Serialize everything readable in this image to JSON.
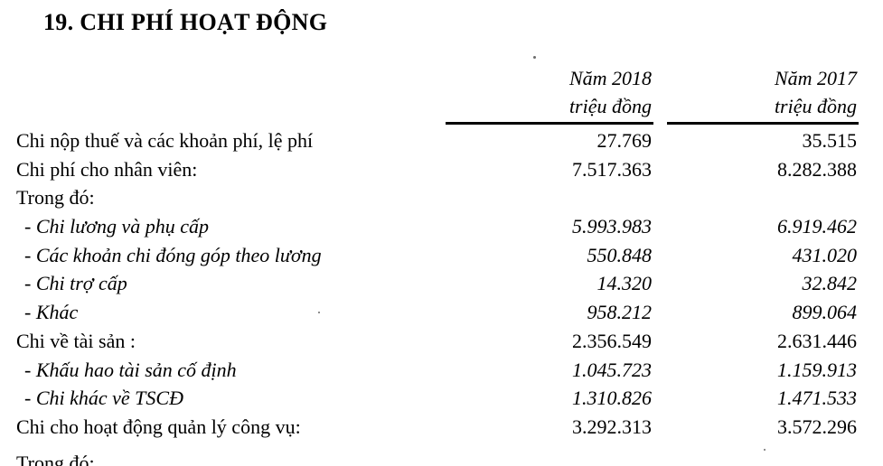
{
  "doc": {
    "title": "19. CHI PHÍ HOẠT ĐỘNG",
    "table": {
      "columns": [
        {
          "year": "Năm 2018",
          "unit": "triệu đồng"
        },
        {
          "year": "Năm 2017",
          "unit": "triệu đồng"
        }
      ],
      "rows": [
        {
          "label": "Chi nộp thuế và các khoản phí, lệ phí",
          "v2018": "27.769",
          "v2017": "35.515",
          "style": "regular"
        },
        {
          "label": "Chi phí cho nhân viên:",
          "v2018": "7.517.363",
          "v2017": "8.282.388",
          "style": "regular"
        },
        {
          "label": "Trong đó:",
          "v2018": "",
          "v2017": "",
          "style": "regular"
        },
        {
          "label": "- Chi lương và phụ cấp",
          "v2018": "5.993.983",
          "v2017": "6.919.462",
          "style": "italic"
        },
        {
          "label": "- Các khoản chi đóng góp theo lương",
          "v2018": "550.848",
          "v2017": "431.020",
          "style": "italic"
        },
        {
          "label": "- Chi trợ cấp",
          "v2018": "14.320",
          "v2017": "32.842",
          "style": "italic"
        },
        {
          "label": "- Khác",
          "v2018": "958.212",
          "v2017": "899.064",
          "style": "italic"
        },
        {
          "label": "Chi về tài sản :",
          "v2018": "2.356.549",
          "v2017": "2.631.446",
          "style": "regular"
        },
        {
          "label": "- Khấu hao tài sản cố định",
          "v2018": "1.045.723",
          "v2017": "1.159.913",
          "style": "italic"
        },
        {
          "label": "- Chi khác về TSCĐ",
          "v2018": "1.310.826",
          "v2017": "1.471.533",
          "style": "italic"
        },
        {
          "label": "Chi cho hoạt động quản lý công vụ:",
          "v2018": "3.292.313",
          "v2017": "3.572.296",
          "style": "regular"
        }
      ],
      "partial_row": {
        "label": "Trong đó:"
      }
    }
  }
}
